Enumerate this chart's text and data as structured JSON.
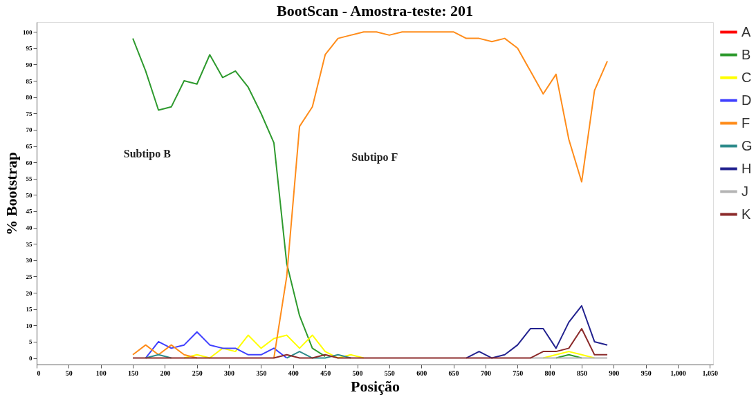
{
  "chart_data": {
    "type": "line",
    "title": "BootScan    - Amostra-teste: 201",
    "xlabel": "Posição",
    "ylabel": "% Bootstrap",
    "x": [
      150,
      170,
      190,
      210,
      230,
      250,
      270,
      290,
      310,
      330,
      350,
      370,
      390,
      410,
      430,
      450,
      470,
      490,
      510,
      530,
      550,
      570,
      590,
      610,
      630,
      650,
      670,
      690,
      710,
      730,
      750,
      770,
      790,
      810,
      830,
      850,
      870,
      890
    ],
    "series": [
      {
        "name": "A",
        "color": "#ff0000",
        "values": [
          null,
          null,
          null,
          null,
          null,
          null,
          null,
          null,
          null,
          null,
          null,
          null,
          null,
          null,
          null,
          null,
          null,
          null,
          null,
          null,
          null,
          null,
          null,
          null,
          null,
          null,
          null,
          null,
          null,
          null,
          null,
          null,
          null,
          null,
          null,
          null,
          null,
          null
        ]
      },
      {
        "name": "B",
        "color": "#2e9a2e",
        "values": [
          98,
          88,
          76,
          77,
          85,
          84,
          93,
          86,
          88,
          83,
          75,
          66,
          29,
          13,
          3,
          0.5,
          null,
          null,
          null,
          null,
          null,
          null,
          null,
          null,
          null,
          null,
          null,
          null,
          null,
          null,
          null,
          null,
          null,
          0,
          1,
          0,
          null,
          null
        ]
      },
      {
        "name": "C",
        "color": "#ffff00",
        "values": [
          null,
          null,
          null,
          null,
          0,
          1,
          0,
          3,
          2,
          7,
          3,
          6,
          7,
          3,
          7,
          2,
          0,
          1,
          0,
          null,
          null,
          null,
          null,
          null,
          null,
          null,
          null,
          null,
          null,
          null,
          null,
          null,
          0,
          1,
          2,
          1,
          0,
          null
        ]
      },
      {
        "name": "D",
        "color": "#3f3fff",
        "values": [
          null,
          0,
          5,
          3,
          4,
          8,
          4,
          3,
          3,
          1,
          1,
          3,
          0,
          null,
          null,
          null,
          null,
          null,
          null,
          null,
          null,
          null,
          null,
          null,
          null,
          null,
          null,
          null,
          null,
          null,
          null,
          null,
          null,
          null,
          null,
          null,
          null,
          null
        ]
      },
      {
        "name": "F",
        "color": "#ff8c1a",
        "values": [
          1,
          4,
          1,
          4,
          1,
          0,
          null,
          null,
          null,
          null,
          null,
          0,
          25,
          71,
          77,
          93,
          98,
          99,
          100,
          100,
          99,
          100,
          100,
          100,
          100,
          100,
          98,
          98,
          97,
          98,
          95,
          88,
          81,
          87,
          67,
          54,
          82,
          91
        ]
      },
      {
        "name": "G",
        "color": "#2e8b8b",
        "values": [
          null,
          0,
          1,
          0,
          null,
          null,
          null,
          null,
          null,
          null,
          null,
          null,
          0,
          2,
          0,
          0,
          1,
          0,
          null,
          null,
          null,
          null,
          null,
          null,
          null,
          null,
          null,
          null,
          null,
          null,
          null,
          null,
          null,
          null,
          null,
          null,
          null,
          null
        ]
      },
      {
        "name": "H",
        "color": "#22228f",
        "values": [
          null,
          null,
          null,
          null,
          null,
          null,
          null,
          null,
          null,
          null,
          null,
          null,
          null,
          null,
          null,
          null,
          null,
          null,
          null,
          null,
          null,
          null,
          null,
          null,
          null,
          null,
          0,
          2,
          0,
          1,
          4,
          9,
          9,
          3,
          11,
          16,
          5,
          4
        ]
      },
      {
        "name": "J",
        "color": "#b4b4b4",
        "values": [
          null,
          null,
          null,
          null,
          null,
          null,
          null,
          null,
          null,
          null,
          null,
          null,
          null,
          null,
          null,
          null,
          null,
          null,
          null,
          null,
          null,
          null,
          null,
          null,
          null,
          null,
          null,
          null,
          null,
          null,
          null,
          0,
          0,
          0,
          0,
          0,
          0,
          0
        ]
      },
      {
        "name": "K",
        "color": "#8b2a2a",
        "values": [
          0,
          0,
          0,
          0,
          0,
          0,
          0,
          0,
          0,
          0,
          0,
          0,
          1,
          0,
          0,
          1,
          0,
          0,
          0,
          0,
          0,
          0,
          0,
          0,
          0,
          0,
          0,
          0,
          0,
          0,
          0,
          0,
          2,
          2,
          3,
          9,
          1,
          1
        ]
      }
    ],
    "xlim": [
      0,
      1055
    ],
    "ylim": [
      -2,
      103
    ],
    "xticks": [
      0,
      50,
      100,
      150,
      200,
      250,
      300,
      350,
      400,
      450,
      500,
      550,
      600,
      650,
      700,
      750,
      800,
      850,
      900,
      950,
      {
        "value": 1000,
        "label": "1,000"
      },
      {
        "value": 1050,
        "label": "1,050"
      }
    ],
    "yticks": [
      0,
      5,
      10,
      15,
      20,
      25,
      30,
      35,
      40,
      45,
      50,
      55,
      60,
      65,
      70,
      75,
      80,
      85,
      90,
      95,
      100
    ],
    "annotations": [
      "Subtipo B",
      "Subtipo F"
    ],
    "legend": "right",
    "grid": false,
    "marker": "none",
    "line_style": "solid"
  }
}
